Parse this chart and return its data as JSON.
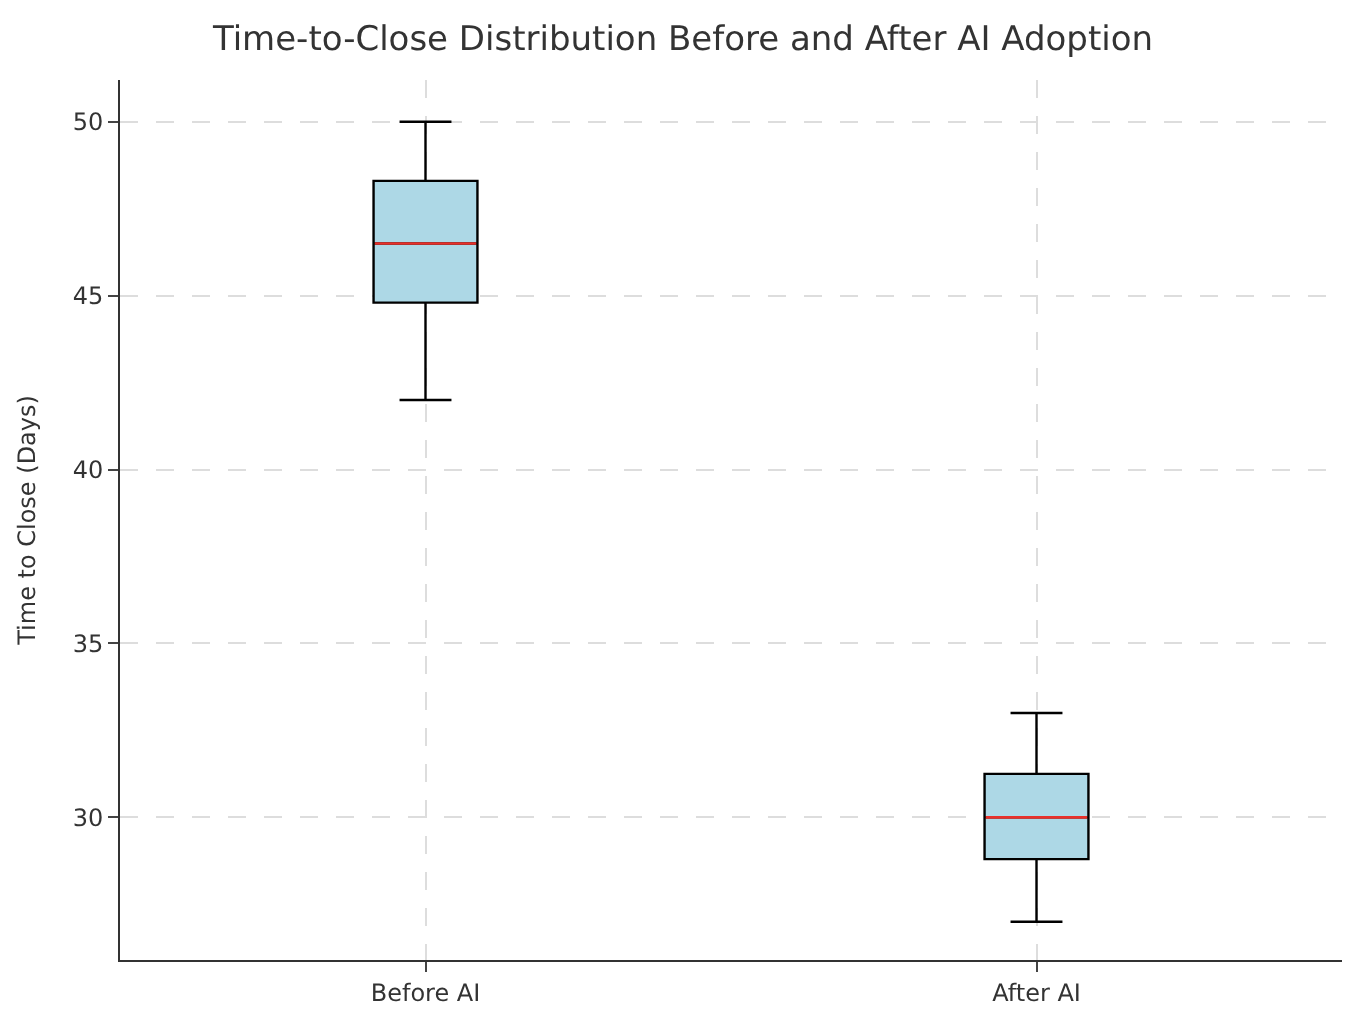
{
  "chart_data": {
    "type": "box",
    "title": "Time-to-Close Distribution Before and After AI Adoption",
    "ylabel": "Time to Close (Days)",
    "categories": [
      "Before AI",
      "After AI"
    ],
    "series": [
      {
        "color": "#add8e6",
        "boxes": [
          {
            "low": 42,
            "q1": 44.8,
            "median": 46.5,
            "q3": 48.3,
            "high": 50
          },
          {
            "low": 27,
            "q1": 28.8,
            "median": 30,
            "q3": 31.25,
            "high": 33
          }
        ]
      }
    ],
    "ylim": [
      25.9,
      51.2
    ],
    "yticks": [
      30,
      35,
      40,
      45,
      50
    ],
    "grid": true
  }
}
